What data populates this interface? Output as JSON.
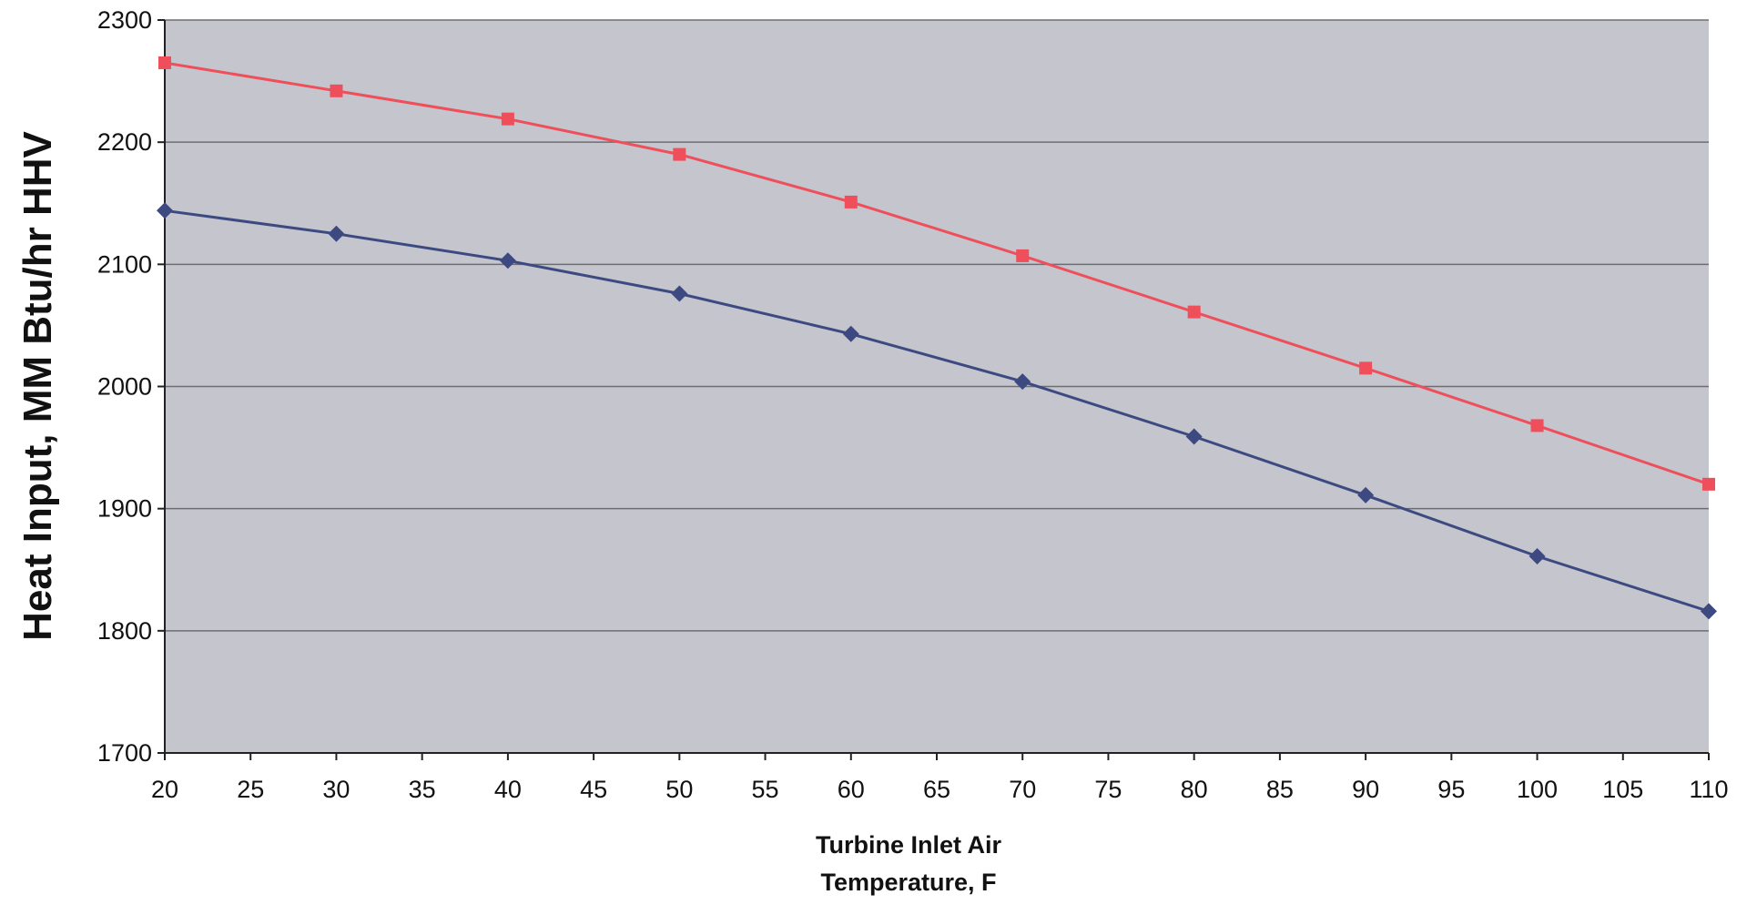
{
  "chart_data": {
    "type": "line",
    "xlabel_lines": [
      "Turbine Inlet Air",
      "Temperature, F"
    ],
    "ylabel": "Heat Input, MM Btu/hr HHV",
    "xlim": [
      20,
      110
    ],
    "ylim": [
      1700,
      2300
    ],
    "x_ticks": [
      "20",
      "25",
      "30",
      "35",
      "40",
      "45",
      "50",
      "55",
      "60",
      "65",
      "70",
      "75",
      "80",
      "85",
      "90",
      "95",
      "100",
      "105",
      "110"
    ],
    "y_ticks": [
      "1700",
      "1800",
      "1900",
      "2000",
      "2100",
      "2200",
      "2300"
    ],
    "grid": "horizontal",
    "legend": "none",
    "colors": {
      "plot_bg": "#c4c5cd",
      "gridline": "#6e6e72",
      "axis": "#222222"
    },
    "x": [
      20,
      30,
      40,
      50,
      60,
      70,
      80,
      90,
      100,
      110
    ],
    "series": [
      {
        "color": "#ef4f5a",
        "marker": "square",
        "values": [
          2265,
          2242,
          2219,
          2190,
          2151,
          2107,
          2061,
          2015,
          1968,
          1920
        ]
      },
      {
        "color": "#3d4a82",
        "marker": "diamond",
        "values": [
          2144,
          2125,
          2103,
          2076,
          2043,
          2004,
          1959,
          1911,
          1861,
          1816
        ]
      }
    ]
  }
}
